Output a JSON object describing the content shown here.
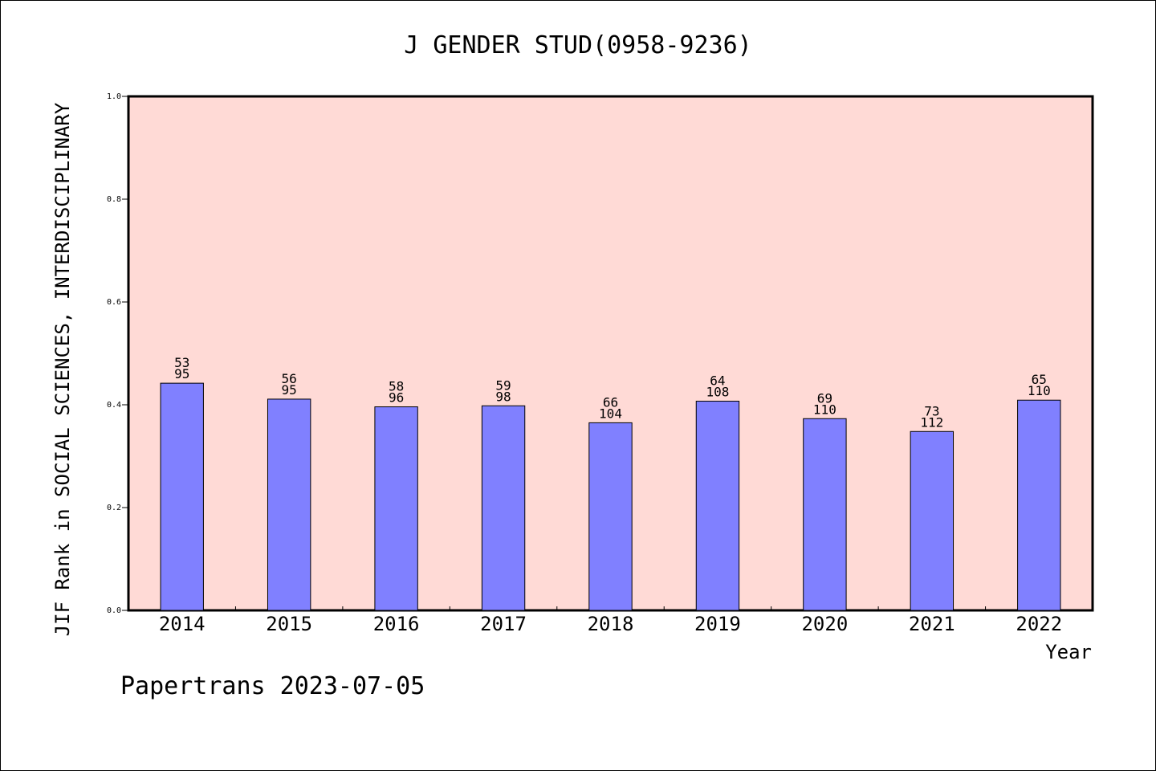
{
  "chart_data": {
    "type": "bar",
    "title": "J GENDER STUD(0958-9236)",
    "xlabel": "Year",
    "ylabel": "JIF Rank in SOCIAL SCIENCES, INTERDISCIPLINARY",
    "categories": [
      "2014",
      "2015",
      "2016",
      "2017",
      "2018",
      "2019",
      "2020",
      "2021",
      "2022"
    ],
    "values": [
      0.442,
      0.411,
      0.396,
      0.398,
      0.365,
      0.407,
      0.373,
      0.348,
      0.409
    ],
    "rank": [
      "53",
      "56",
      "58",
      "59",
      "66",
      "64",
      "69",
      "73",
      "65"
    ],
    "total": [
      "95",
      "95",
      "96",
      "98",
      "104",
      "108",
      "110",
      "112",
      "110"
    ],
    "ylim": [
      0,
      1.0
    ],
    "yticks": [
      "0.0",
      "0.2",
      "0.4",
      "0.6",
      "0.8",
      "1.0"
    ],
    "grid": false,
    "colors": {
      "plot_background": "#FFDAD6",
      "bar_fill": "#8080FF",
      "bar_stroke": "#000000"
    }
  },
  "footer": "Papertrans 2023-07-05"
}
